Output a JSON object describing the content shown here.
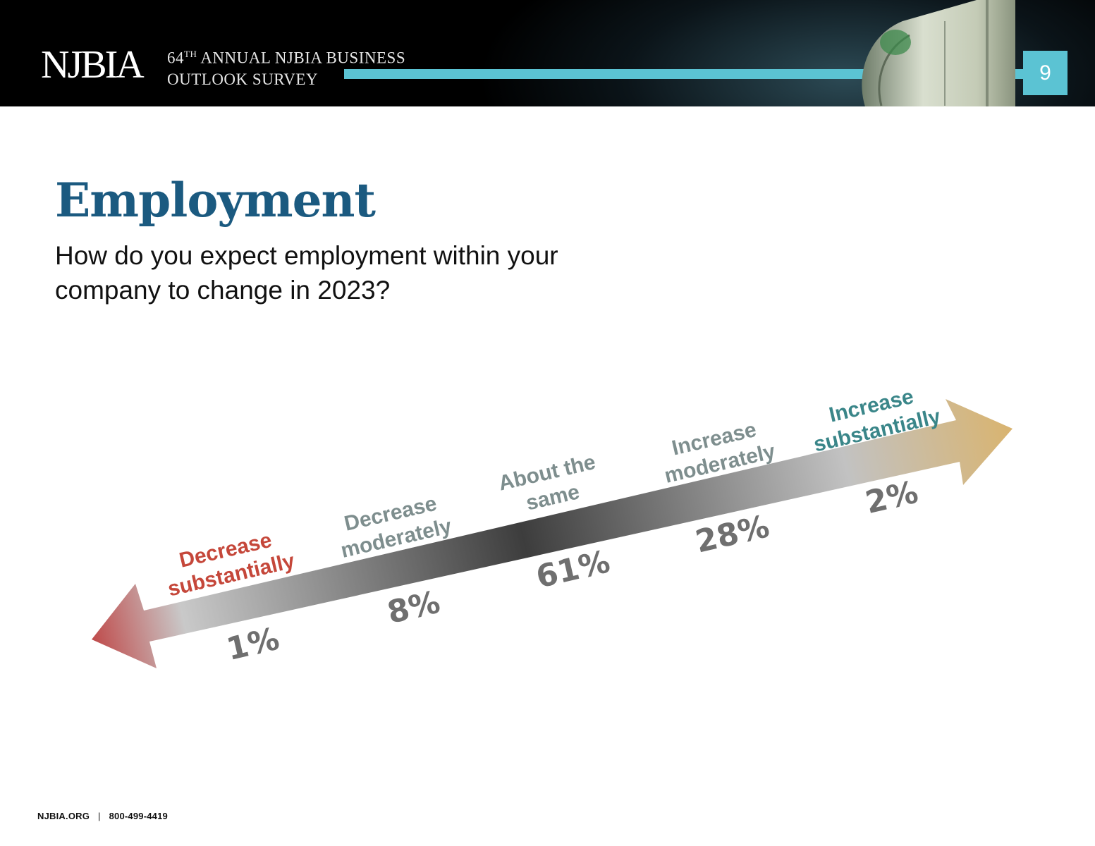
{
  "header": {
    "logo": "NJBIA",
    "survey_line1_num": "64",
    "survey_line1_sup": "TH",
    "survey_line1_rest": " ANNUAL NJBIA BUSINESS",
    "survey_line2": "OUTLOOK SURVEY",
    "page_number": "9"
  },
  "title": "Employment",
  "question": "How do you expect employment within your company to change in 2023?",
  "chart_data": {
    "type": "bar",
    "title": "",
    "xlabel": "",
    "ylabel": "",
    "categories": [
      [
        "Decrease",
        "substantially"
      ],
      [
        "Decrease",
        "moderately"
      ],
      [
        "About the",
        "same"
      ],
      [
        "Increase",
        "moderately"
      ],
      [
        "Increase",
        "substantially"
      ]
    ],
    "values": [
      1,
      8,
      61,
      28,
      2
    ],
    "value_labels": [
      "1%",
      "8%",
      "61%",
      "28%",
      "2%"
    ],
    "category_colors": [
      "#c5473a",
      "#7e8e8e",
      "#7e8e8e",
      "#7e8e8e",
      "#3a8689"
    ],
    "grid": false
  },
  "colors": {
    "brand_blue": "#1b5a80",
    "accent_teal": "#5bc3d3",
    "value_gray": "#6f6f6f"
  },
  "footer": {
    "site": "NJBIA.ORG",
    "separator": "|",
    "phone": "800-499-4419"
  }
}
